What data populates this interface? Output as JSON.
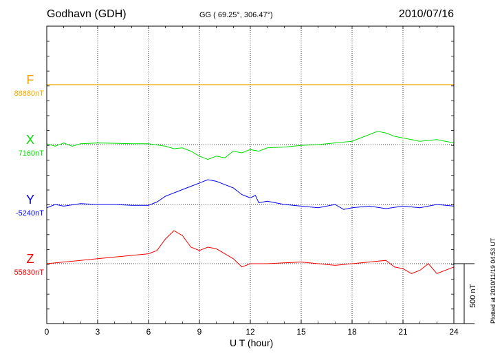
{
  "header": {
    "station": "Godhavn (GDH)",
    "coords": "GG ( 69.25°, 306.47°)",
    "date": "2010/07/16"
  },
  "plotted_note": "Plotted at 2010/11/19 04:53 UT",
  "scale_label": "500 nT",
  "chart_data": {
    "type": "line",
    "title": "Godhavn (GDH)",
    "xlabel": "U T (hour)",
    "ylabel": "",
    "xlim": [
      0,
      24
    ],
    "xticks": [
      "0",
      "3",
      "6",
      "9",
      "12",
      "15",
      "18",
      "21",
      "24"
    ],
    "grid": true,
    "scale_bar_nT": 500,
    "series": [
      {
        "name": "F",
        "baseline": "88880nT",
        "baseline_nT": 88880,
        "color": "#f0a800",
        "x": [
          0,
          24
        ],
        "y": [
          0,
          0
        ]
      },
      {
        "name": "X",
        "baseline": "7160nT",
        "baseline_nT": 7160,
        "color": "#00dd00",
        "x": [
          0,
          0.5,
          1,
          1.5,
          2,
          3,
          4,
          5,
          6,
          7,
          7.5,
          8,
          8.5,
          9,
          9.5,
          10,
          10.5,
          11,
          11.5,
          12,
          12.5,
          13,
          14,
          15,
          16,
          17,
          18,
          19,
          19.5,
          20,
          20.5,
          21,
          22,
          23,
          24
        ],
        "y": [
          5,
          -10,
          10,
          -10,
          5,
          10,
          8,
          5,
          5,
          -10,
          -25,
          -20,
          -40,
          -70,
          -90,
          -70,
          -80,
          -40,
          -50,
          -30,
          -40,
          -20,
          -15,
          -5,
          0,
          10,
          20,
          60,
          80,
          70,
          50,
          40,
          20,
          30,
          10
        ]
      },
      {
        "name": "Y",
        "baseline": "-5240nT",
        "baseline_nT": -5240,
        "color": "#0000ee",
        "x": [
          0,
          0.5,
          1,
          2,
          3,
          4,
          5,
          6,
          6.5,
          7,
          7.5,
          8,
          8.5,
          9,
          9.5,
          10,
          10.5,
          11,
          11.5,
          12,
          12.3,
          12.5,
          13,
          14,
          15,
          16,
          17,
          17.5,
          18,
          19,
          20,
          21,
          22,
          23,
          24
        ],
        "y": [
          -20,
          0,
          -10,
          5,
          0,
          0,
          -5,
          -5,
          15,
          50,
          70,
          90,
          110,
          130,
          150,
          140,
          120,
          100,
          60,
          40,
          55,
          10,
          20,
          0,
          -10,
          -20,
          0,
          -30,
          -20,
          -10,
          -25,
          -10,
          -20,
          0,
          -10
        ]
      },
      {
        "name": "Z",
        "baseline": "55830nT",
        "baseline_nT": 55830,
        "color": "#ee0000",
        "x": [
          0,
          1,
          2,
          3,
          4,
          5,
          6,
          6.5,
          7,
          7.5,
          8,
          8.5,
          9,
          9.5,
          10,
          10.5,
          11,
          11.5,
          12,
          13,
          14,
          15,
          16,
          17,
          18,
          19,
          20,
          20.5,
          21,
          21.5,
          22,
          22.5,
          23,
          24
        ],
        "y": [
          0,
          10,
          20,
          30,
          40,
          50,
          60,
          80,
          150,
          200,
          170,
          100,
          80,
          100,
          90,
          60,
          30,
          -20,
          0,
          0,
          5,
          10,
          0,
          -10,
          0,
          10,
          20,
          -20,
          -30,
          -60,
          -40,
          0,
          -60,
          -20
        ]
      }
    ]
  }
}
